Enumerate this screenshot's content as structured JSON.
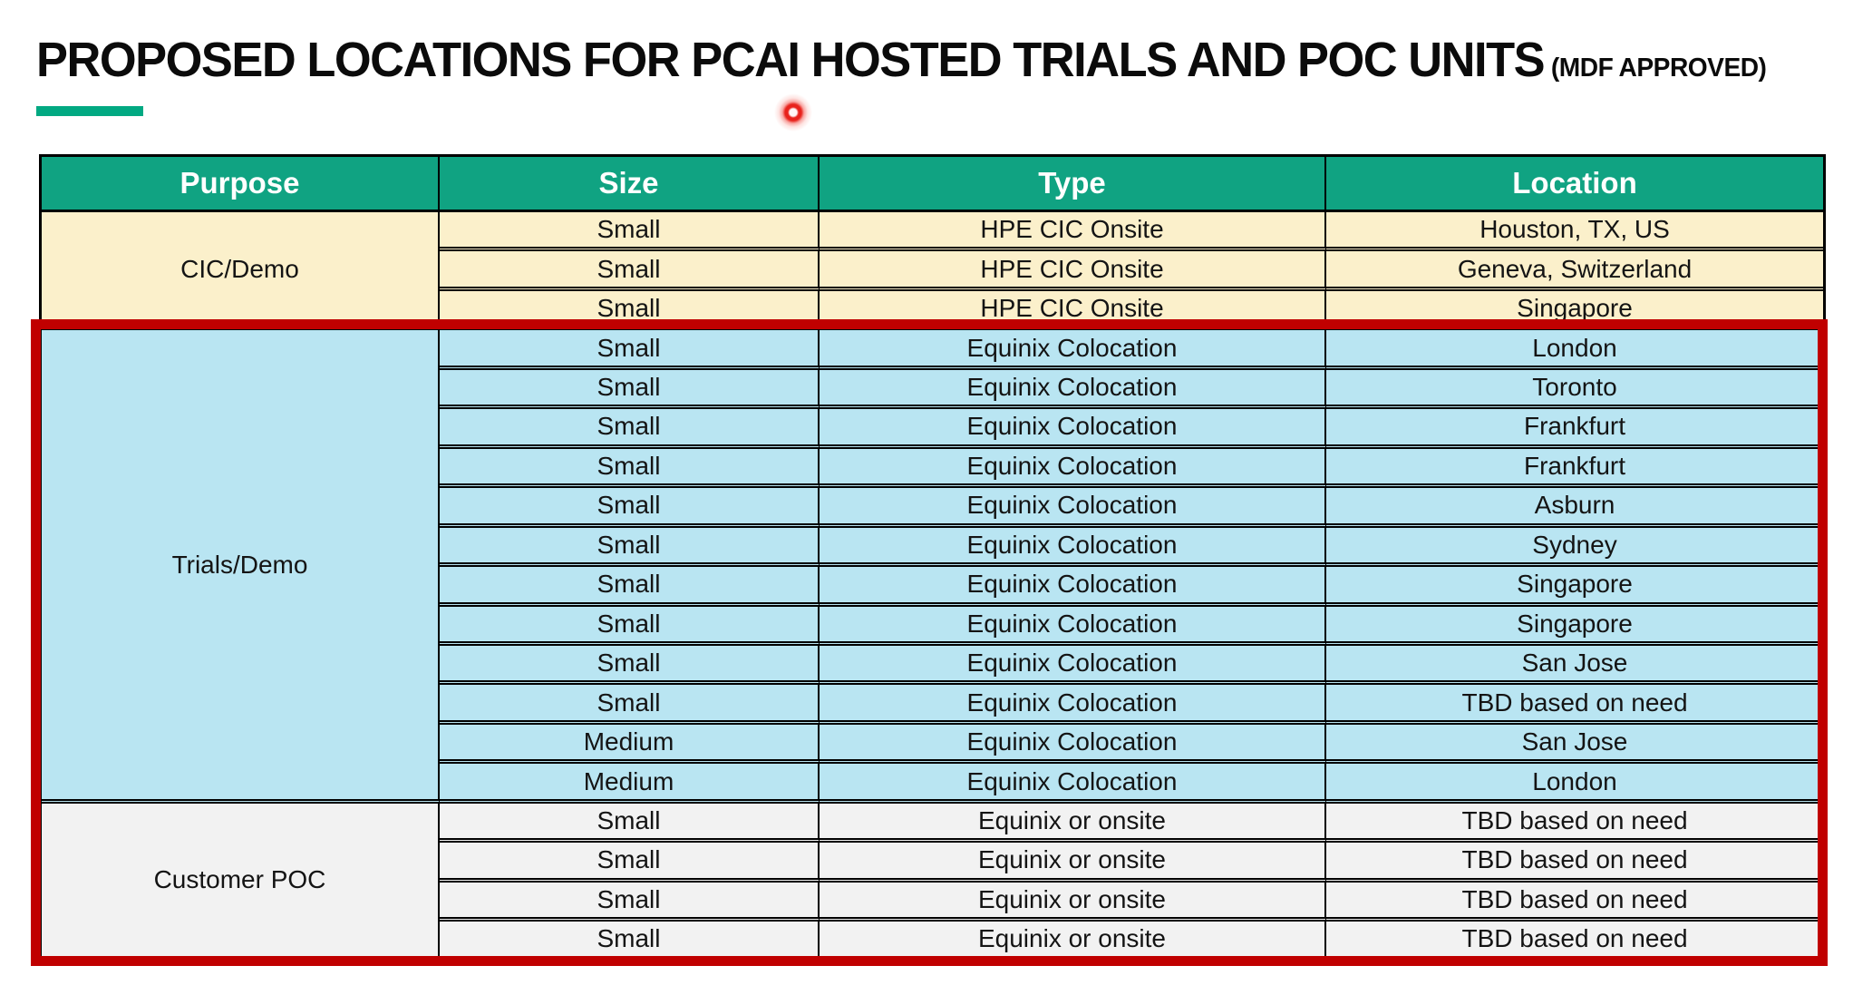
{
  "slide": {
    "title": "PROPOSED LOCATIONS FOR PCAI HOSTED TRIALS AND POC UNITS",
    "title_suffix": "(MDF APPROVED)"
  },
  "colors": {
    "accent_green": "#01A982",
    "header_green": "#10A382",
    "highlight_red": "#C00000",
    "laser_red": "#E8221C",
    "section_cream": "#FBF0CB",
    "section_blue": "#B9E5F2",
    "section_gray": "#F2F2F2"
  },
  "icons": {
    "laser_pointer": "red-laser-dot"
  },
  "table": {
    "headers": [
      "Purpose",
      "Size",
      "Type",
      "Location"
    ],
    "sections": [
      {
        "purpose": "CIC/Demo",
        "bg": "section_cream",
        "highlighted": false,
        "rows": [
          {
            "size": "Small",
            "type": "HPE CIC Onsite",
            "location": "Houston, TX, US"
          },
          {
            "size": "Small",
            "type": "HPE CIC Onsite",
            "location": "Geneva, Switzerland"
          },
          {
            "size": "Small",
            "type": "HPE CIC Onsite",
            "location": "Singapore"
          }
        ]
      },
      {
        "purpose": "Trials/Demo",
        "bg": "section_blue",
        "highlighted": true,
        "rows": [
          {
            "size": "Small",
            "type": "Equinix Colocation",
            "location": "London"
          },
          {
            "size": "Small",
            "type": "Equinix Colocation",
            "location": "Toronto"
          },
          {
            "size": "Small",
            "type": "Equinix Colocation",
            "location": "Frankfurt"
          },
          {
            "size": "Small",
            "type": "Equinix Colocation",
            "location": "Frankfurt"
          },
          {
            "size": "Small",
            "type": "Equinix Colocation",
            "location": "Asburn"
          },
          {
            "size": "Small",
            "type": "Equinix Colocation",
            "location": "Sydney"
          },
          {
            "size": "Small",
            "type": "Equinix Colocation",
            "location": "Singapore"
          },
          {
            "size": "Small",
            "type": "Equinix Colocation",
            "location": "Singapore"
          },
          {
            "size": "Small",
            "type": "Equinix Colocation",
            "location": "San Jose"
          },
          {
            "size": "Small",
            "type": "Equinix Colocation",
            "location": "TBD based on need"
          },
          {
            "size": "Medium",
            "type": "Equinix Colocation",
            "location": "San Jose"
          },
          {
            "size": "Medium",
            "type": "Equinix Colocation",
            "location": "London"
          }
        ]
      },
      {
        "purpose": "Customer POC",
        "bg": "section_gray",
        "highlighted": true,
        "rows": [
          {
            "size": "Small",
            "type": "Equinix or onsite",
            "location": "TBD based on need"
          },
          {
            "size": "Small",
            "type": "Equinix or onsite",
            "location": "TBD based on need"
          },
          {
            "size": "Small",
            "type": "Equinix or onsite",
            "location": "TBD based on need"
          },
          {
            "size": "Small",
            "type": "Equinix or onsite",
            "location": "TBD based on need"
          }
        ]
      }
    ]
  }
}
